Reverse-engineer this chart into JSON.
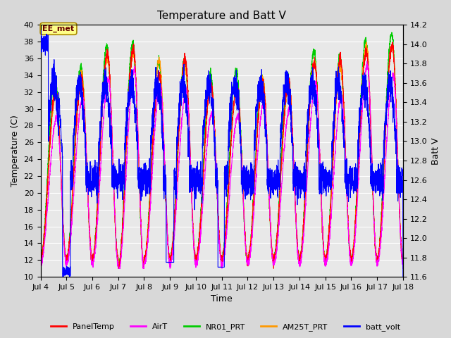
{
  "title": "Temperature and Batt V",
  "xlabel": "Time",
  "ylabel_left": "Temperature (C)",
  "ylabel_right": "Batt V",
  "ylim_left": [
    10,
    40
  ],
  "ylim_right": [
    11.6,
    14.2
  ],
  "xlim": [
    4,
    18
  ],
  "xtick_labels": [
    "Jul 4",
    "Jul 5",
    "Jul 6",
    "Jul 7",
    "Jul 8",
    "Jul 9",
    "Jul 10",
    "Jul 11",
    "Jul 12",
    "Jul 13",
    "Jul 14",
    "Jul 15",
    "Jul 16",
    "Jul 17",
    "Jul 18"
  ],
  "xtick_positions": [
    4,
    5,
    6,
    7,
    8,
    9,
    10,
    11,
    12,
    13,
    14,
    15,
    16,
    17,
    18
  ],
  "ytick_left": [
    10,
    12,
    14,
    16,
    18,
    20,
    22,
    24,
    26,
    28,
    30,
    32,
    34,
    36,
    38,
    40
  ],
  "ytick_right": [
    11.6,
    11.8,
    12.0,
    12.2,
    12.4,
    12.6,
    12.8,
    13.0,
    13.2,
    13.4,
    13.6,
    13.8,
    14.0,
    14.2
  ],
  "colors": {
    "PanelTemp": "#ff0000",
    "AirT": "#ff00ff",
    "NR01_PRT": "#00cc00",
    "AM25T_PRT": "#ff9900",
    "batt_volt": "#0000ff"
  },
  "legend_entries": [
    "PanelTemp",
    "AirT",
    "NR01_PRT",
    "AM25T_PRT",
    "batt_volt"
  ],
  "annotation_text": "EE_met",
  "background_color": "#e8e8e8",
  "grid_color": "#ffffff",
  "title_fontsize": 11,
  "axis_fontsize": 9,
  "tick_fontsize": 8,
  "fig_width": 6.4,
  "fig_height": 4.8,
  "dpi": 100,
  "day_peaks": [
    32,
    34,
    37,
    37,
    35,
    35,
    33,
    33,
    33,
    33,
    35,
    35,
    38,
    37
  ],
  "day_mins": [
    12,
    12,
    12,
    11,
    12,
    12,
    12,
    12,
    12,
    12,
    12,
    12,
    12,
    12
  ]
}
